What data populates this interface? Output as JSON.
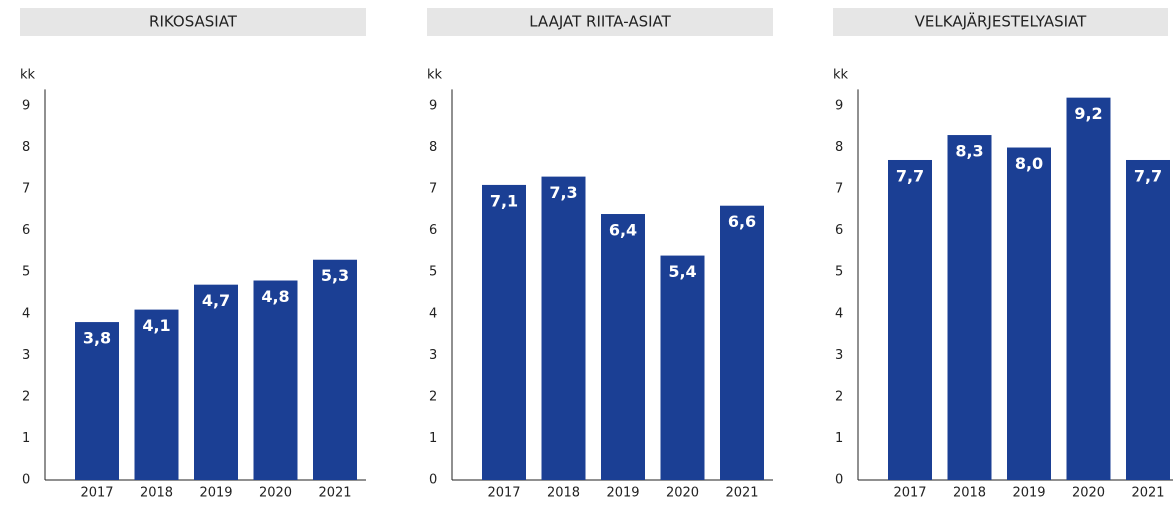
{
  "chart_data": [
    {
      "type": "bar",
      "title": "RIKOSASIAT",
      "y_label": "kk",
      "categories": [
        "2017",
        "2018",
        "2019",
        "2020",
        "2021"
      ],
      "values": [
        3.8,
        4.1,
        4.7,
        4.8,
        5.3
      ],
      "value_labels": [
        "3,8",
        "4,1",
        "4,7",
        "4,8",
        "5,3"
      ],
      "color": "#1b3f94",
      "ylim": [
        0,
        9.4
      ],
      "yticks": [
        0,
        1,
        2,
        3,
        4,
        5,
        6,
        7,
        8,
        9
      ]
    },
    {
      "type": "bar",
      "title": "LAAJAT RIITA-ASIAT",
      "y_label": "kk",
      "categories": [
        "2017",
        "2018",
        "2019",
        "2020",
        "2021"
      ],
      "values": [
        7.1,
        7.3,
        6.4,
        5.4,
        6.6
      ],
      "value_labels": [
        "7,1",
        "7,3",
        "6,4",
        "5,4",
        "6,6"
      ],
      "color": "#1b3f94",
      "ylim": [
        0,
        9.4
      ],
      "yticks": [
        0,
        1,
        2,
        3,
        4,
        5,
        6,
        7,
        8,
        9
      ]
    },
    {
      "type": "bar",
      "title": "VELKAJÄRJESTELYASIAT",
      "y_label": "kk",
      "categories": [
        "2017",
        "2018",
        "2019",
        "2020",
        "2021"
      ],
      "values": [
        7.7,
        8.3,
        8.0,
        9.2,
        7.7
      ],
      "value_labels": [
        "7,7",
        "8,3",
        "8,0",
        "9,2",
        "7,7"
      ],
      "color": "#1b3f94",
      "ylim": [
        0,
        9.4
      ],
      "yticks": [
        0,
        1,
        2,
        3,
        4,
        5,
        6,
        7,
        8,
        9
      ]
    }
  ]
}
